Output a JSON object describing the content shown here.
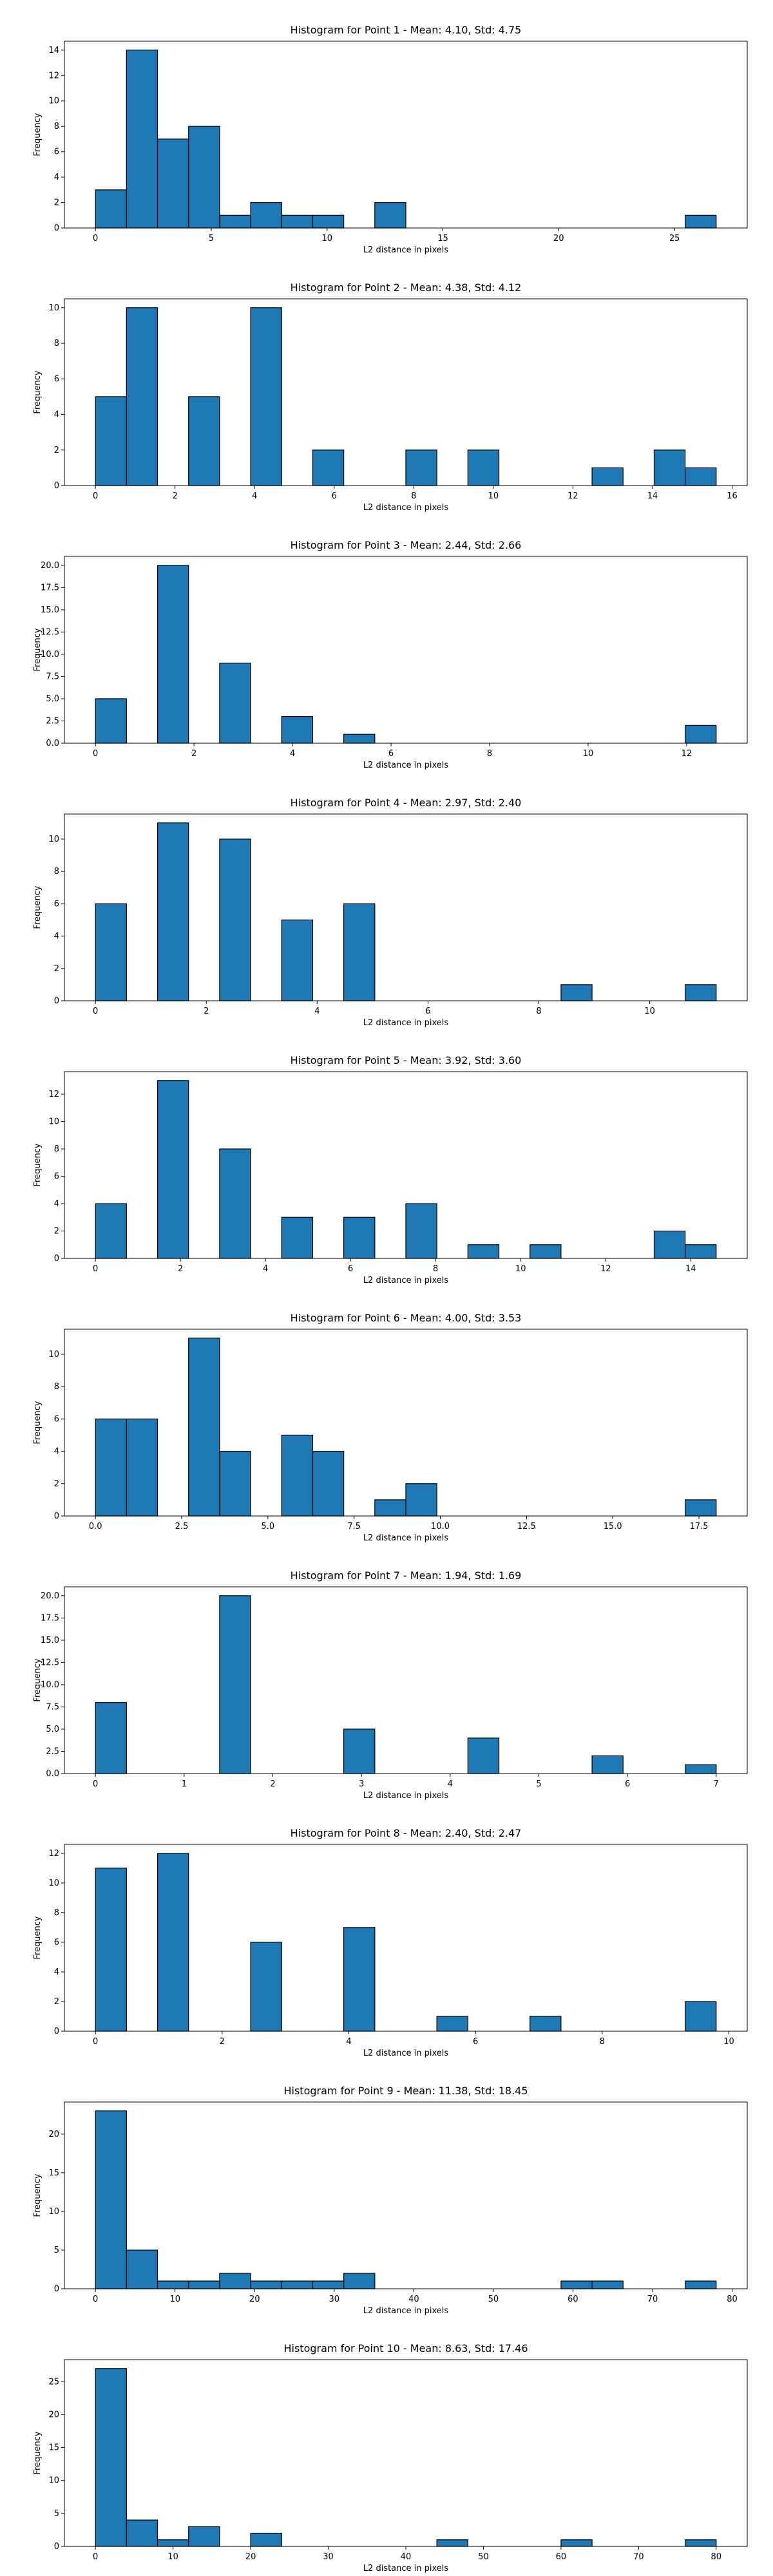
{
  "chart_data": [
    {
      "type": "histogram",
      "title": "Histogram for Point 1 - Mean: 4.10, Std: 4.75",
      "x_label": "L2 distance in pixels",
      "y_label": "Frequency",
      "color": "#1f77b4",
      "edgecolor": "#000000",
      "bins": [
        0,
        1.34,
        2.68,
        4.02,
        5.36,
        6.7,
        8.04,
        9.38,
        10.72,
        12.06,
        13.4,
        14.74,
        16.08,
        17.42,
        18.76,
        20.1,
        21.44,
        22.78,
        24.12,
        25.46,
        26.8
      ],
      "counts": [
        3,
        14,
        7,
        8,
        1,
        2,
        1,
        1,
        0,
        2,
        0,
        0,
        0,
        0,
        0,
        0,
        0,
        0,
        0,
        1
      ],
      "xlim": [
        -1.34,
        28.14
      ],
      "xticks": [
        0,
        5,
        10,
        15,
        20,
        25
      ],
      "ylim": [
        0,
        14.7
      ],
      "yticks": [
        0,
        2,
        4,
        6,
        8,
        10,
        12,
        14
      ]
    },
    {
      "type": "histogram",
      "title": "Histogram for Point 2 - Mean: 4.38, Std: 4.12",
      "x_label": "L2 distance in pixels",
      "y_label": "Frequency",
      "color": "#1f77b4",
      "edgecolor": "#000000",
      "bins": [
        0,
        0.78,
        1.56,
        2.34,
        3.12,
        3.9,
        4.68,
        5.46,
        6.24,
        7.02,
        7.8,
        8.58,
        9.36,
        10.14,
        10.92,
        11.7,
        12.48,
        13.26,
        14.04,
        14.82,
        15.6
      ],
      "counts": [
        5,
        10,
        0,
        5,
        0,
        10,
        0,
        2,
        0,
        0,
        2,
        0,
        2,
        0,
        0,
        0,
        1,
        0,
        2,
        1
      ],
      "xlim": [
        -0.78,
        16.38
      ],
      "xticks": [
        0,
        2,
        4,
        6,
        8,
        10,
        12,
        14,
        16
      ],
      "ylim": [
        0,
        10.5
      ],
      "yticks": [
        0,
        2,
        4,
        6,
        8,
        10
      ]
    },
    {
      "type": "histogram",
      "title": "Histogram for Point 3 - Mean: 2.44, Std: 2.66",
      "x_label": "L2 distance in pixels",
      "y_label": "Frequency",
      "color": "#1f77b4",
      "edgecolor": "#000000",
      "bins": [
        0,
        0.63,
        1.26,
        1.89,
        2.52,
        3.15,
        3.78,
        4.41,
        5.04,
        5.67,
        6.3,
        6.93,
        7.56,
        8.19,
        8.82,
        9.45,
        10.08,
        10.71,
        11.34,
        11.97,
        12.6
      ],
      "counts": [
        5,
        0,
        20,
        0,
        9,
        0,
        3,
        0,
        1,
        0,
        0,
        0,
        0,
        0,
        0,
        0,
        0,
        0,
        0,
        2
      ],
      "xlim": [
        -0.63,
        13.23
      ],
      "xticks": [
        0,
        2,
        4,
        6,
        8,
        10,
        12
      ],
      "ylim": [
        0,
        21
      ],
      "yticks": [
        {
          "value": 0,
          "label": "0.0"
        },
        2.5,
        {
          "value": 5,
          "label": "5.0"
        },
        7.5,
        {
          "value": 10,
          "label": "10.0"
        },
        12.5,
        {
          "value": 15,
          "label": "15.0"
        },
        17.5,
        {
          "value": 20,
          "label": "20.0"
        }
      ]
    },
    {
      "type": "histogram",
      "title": "Histogram for Point 4 - Mean: 2.97, Std: 2.40",
      "x_label": "L2 distance in pixels",
      "y_label": "Frequency",
      "color": "#1f77b4",
      "edgecolor": "#000000",
      "bins": [
        0,
        0.56,
        1.12,
        1.68,
        2.24,
        2.8,
        3.36,
        3.92,
        4.48,
        5.04,
        5.6,
        6.16,
        6.72,
        7.28,
        7.84,
        8.4,
        8.96,
        9.52,
        10.08,
        10.64,
        11.2
      ],
      "counts": [
        6,
        0,
        11,
        0,
        10,
        0,
        5,
        0,
        6,
        0,
        0,
        0,
        0,
        0,
        0,
        1,
        0,
        0,
        0,
        1
      ],
      "xlim": [
        -0.56,
        11.76
      ],
      "xticks": [
        0,
        2,
        4,
        6,
        8,
        10
      ],
      "ylim": [
        0,
        11.55
      ],
      "yticks": [
        0,
        2,
        4,
        6,
        8,
        10
      ]
    },
    {
      "type": "histogram",
      "title": "Histogram for Point 5 - Mean: 3.92, Std: 3.60",
      "x_label": "L2 distance in pixels",
      "y_label": "Frequency",
      "color": "#1f77b4",
      "edgecolor": "#000000",
      "bins": [
        0,
        0.73,
        1.46,
        2.19,
        2.92,
        3.65,
        4.38,
        5.11,
        5.84,
        6.57,
        7.3,
        8.03,
        8.76,
        9.49,
        10.22,
        10.95,
        11.68,
        12.41,
        13.14,
        13.87,
        14.6
      ],
      "counts": [
        4,
        0,
        13,
        0,
        8,
        0,
        3,
        0,
        3,
        0,
        4,
        0,
        1,
        0,
        1,
        0,
        0,
        0,
        2,
        1
      ],
      "xlim": [
        -0.73,
        15.33
      ],
      "xticks": [
        0,
        2,
        4,
        6,
        8,
        10,
        12,
        14
      ],
      "ylim": [
        0,
        13.65
      ],
      "yticks": [
        0,
        2,
        4,
        6,
        8,
        10,
        12
      ]
    },
    {
      "type": "histogram",
      "title": "Histogram for Point 6 - Mean: 4.00, Std: 3.53",
      "x_label": "L2 distance in pixels",
      "y_label": "Frequency",
      "color": "#1f77b4",
      "edgecolor": "#000000",
      "bins": [
        0,
        0.9,
        1.8,
        2.7,
        3.6,
        4.5,
        5.4,
        6.3,
        7.2,
        8.1,
        9,
        9.9,
        10.8,
        11.7,
        12.6,
        13.5,
        14.4,
        15.3,
        16.2,
        17.1,
        18
      ],
      "counts": [
        6,
        6,
        0,
        11,
        4,
        0,
        5,
        4,
        0,
        1,
        2,
        0,
        0,
        0,
        0,
        0,
        0,
        0,
        0,
        1
      ],
      "xlim": [
        -0.9,
        18.9
      ],
      "xticks": [
        {
          "value": 0,
          "label": "0.0"
        },
        2.5,
        {
          "value": 5,
          "label": "5.0"
        },
        7.5,
        {
          "value": 10,
          "label": "10.0"
        },
        12.5,
        {
          "value": 15,
          "label": "15.0"
        },
        17.5
      ],
      "ylim": [
        0,
        11.55
      ],
      "yticks": [
        0,
        2,
        4,
        6,
        8,
        10
      ]
    },
    {
      "type": "histogram",
      "title": "Histogram for Point 7 - Mean: 1.94, Std: 1.69",
      "x_label": "L2 distance in pixels",
      "y_label": "Frequency",
      "color": "#1f77b4",
      "edgecolor": "#000000",
      "bins": [
        0,
        0.35,
        0.7,
        1.05,
        1.4,
        1.75,
        2.1,
        2.45,
        2.8,
        3.15,
        3.5,
        3.85,
        4.2,
        4.55,
        4.9,
        5.25,
        5.6,
        5.95,
        6.3,
        6.65,
        7
      ],
      "counts": [
        8,
        0,
        0,
        0,
        20,
        0,
        0,
        0,
        5,
        0,
        0,
        0,
        4,
        0,
        0,
        0,
        2,
        0,
        0,
        1
      ],
      "xlim": [
        -0.35,
        7.35
      ],
      "xticks": [
        0,
        1,
        2,
        3,
        4,
        5,
        6,
        7
      ],
      "ylim": [
        0,
        21
      ],
      "yticks": [
        {
          "value": 0,
          "label": "0.0"
        },
        2.5,
        {
          "value": 5,
          "label": "5.0"
        },
        7.5,
        {
          "value": 10,
          "label": "10.0"
        },
        12.5,
        {
          "value": 15,
          "label": "15.0"
        },
        17.5,
        {
          "value": 20,
          "label": "20.0"
        }
      ]
    },
    {
      "type": "histogram",
      "title": "Histogram for Point 8 - Mean: 2.40, Std: 2.47",
      "x_label": "L2 distance in pixels",
      "y_label": "Frequency",
      "color": "#1f77b4",
      "edgecolor": "#000000",
      "bins": [
        0,
        0.49,
        0.98,
        1.47,
        1.96,
        2.45,
        2.94,
        3.43,
        3.92,
        4.41,
        4.9,
        5.39,
        5.88,
        6.37,
        6.86,
        7.35,
        7.84,
        8.33,
        8.82,
        9.31,
        9.8
      ],
      "counts": [
        11,
        0,
        12,
        0,
        0,
        6,
        0,
        0,
        7,
        0,
        0,
        1,
        0,
        0,
        1,
        0,
        0,
        0,
        0,
        2
      ],
      "xlim": [
        -0.49,
        10.29
      ],
      "xticks": [
        0,
        2,
        4,
        6,
        8,
        10
      ],
      "ylim": [
        0,
        12.6
      ],
      "yticks": [
        0,
        2,
        4,
        6,
        8,
        10,
        12
      ]
    },
    {
      "type": "histogram",
      "title": "Histogram for Point 9 - Mean: 11.38, Std: 18.45",
      "x_label": "L2 distance in pixels",
      "y_label": "Frequency",
      "color": "#1f77b4",
      "edgecolor": "#000000",
      "bins": [
        0,
        3.9,
        7.8,
        11.7,
        15.6,
        19.5,
        23.4,
        27.3,
        31.2,
        35.1,
        39,
        42.9,
        46.8,
        50.7,
        54.6,
        58.5,
        62.4,
        66.3,
        70.2,
        74.1,
        78
      ],
      "counts": [
        23,
        5,
        1,
        1,
        2,
        1,
        1,
        1,
        2,
        0,
        0,
        0,
        0,
        0,
        0,
        1,
        1,
        0,
        0,
        1
      ],
      "xlim": [
        -3.9,
        81.9
      ],
      "xticks": [
        0,
        10,
        20,
        30,
        40,
        50,
        60,
        70,
        80
      ],
      "ylim": [
        0,
        24.15
      ],
      "yticks": [
        0,
        5,
        10,
        15,
        20
      ]
    },
    {
      "type": "histogram",
      "title": "Histogram for Point 10 - Mean: 8.63, Std: 17.46",
      "x_label": "L2 distance in pixels",
      "y_label": "Frequency",
      "color": "#1f77b4",
      "edgecolor": "#000000",
      "bins": [
        0,
        4,
        8,
        12,
        16,
        20,
        24,
        28,
        32,
        36,
        40,
        44,
        48,
        52,
        56,
        60,
        64,
        68,
        72,
        76,
        80
      ],
      "counts": [
        27,
        4,
        1,
        3,
        0,
        2,
        0,
        0,
        0,
        0,
        0,
        1,
        0,
        0,
        0,
        1,
        0,
        0,
        0,
        1
      ],
      "xlim": [
        -4,
        84
      ],
      "xticks": [
        0,
        10,
        20,
        30,
        40,
        50,
        60,
        70,
        80
      ],
      "ylim": [
        0,
        28.35
      ],
      "yticks": [
        0,
        5,
        10,
        15,
        20,
        25
      ]
    }
  ]
}
